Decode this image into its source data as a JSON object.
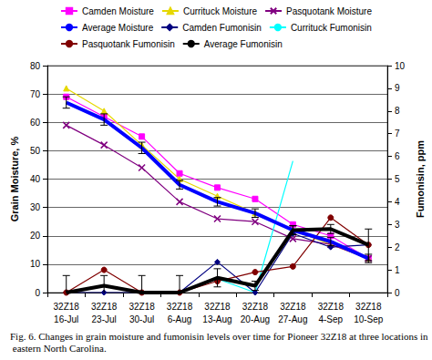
{
  "chart_data": {
    "type": "line",
    "caption": "Fig. 6. Changes in grain moisture and fumonisin levels over time for Pioneer 32Z18 at three locations in eastern North Carolina.",
    "y_label": "Grain Moisture, %",
    "y2_label": "Fumonisin, ppm",
    "categories": [
      "32Z18\n16-Jul",
      "32Z18\n23-Jul",
      "32Z18\n30-Jul",
      "32Z18\n6-Aug",
      "32Z18\n13-Aug",
      "32Z18\n20-Aug",
      "32Z18\n27-Aug",
      "32Z18\n4-Sep",
      "32Z18\n10-Sep"
    ],
    "ylim": [
      0,
      80
    ],
    "yticks": [
      0,
      10,
      20,
      30,
      40,
      50,
      60,
      70,
      80
    ],
    "y2lim": [
      0,
      10
    ],
    "y2ticks": [
      0,
      1,
      2,
      3,
      4,
      5,
      6,
      7,
      8,
      9,
      10
    ],
    "grid": true,
    "legend": "top",
    "series": [
      {
        "name": "Camden Moisture",
        "color": "#FF00FF",
        "marker": "square",
        "values": [
          69,
          62,
          55,
          42,
          37,
          33,
          24,
          20,
          12
        ]
      },
      {
        "name": "Currituck Moisture",
        "color": "#E6D800",
        "marker": "triangle",
        "values": [
          72,
          64,
          52,
          40,
          34,
          28,
          22,
          17,
          12
        ]
      },
      {
        "name": "Pasquotank Moisture",
        "color": "#800080",
        "marker": "x",
        "values": [
          59,
          52,
          44,
          32,
          26,
          25,
          19,
          17,
          12
        ]
      },
      {
        "name": "Average Moisture",
        "color": "#0000FF",
        "marker": "none",
        "line_style": "thick",
        "values": [
          67,
          61,
          51,
          38,
          32,
          28,
          22,
          18,
          12
        ],
        "errors": [
          2,
          2,
          2,
          1.5,
          1.5,
          1.5,
          1.5,
          1.5,
          1.5
        ]
      },
      {
        "name": "Camden Fumonisin",
        "color": "#000080",
        "marker": "diamond",
        "axis": "y2",
        "values": [
          0,
          0,
          0,
          0,
          1.35,
          0,
          2.6,
          2.0,
          2.1
        ]
      },
      {
        "name": "Currituck Fumonisin",
        "color": "#00FFFF",
        "marker": "none",
        "axis": "y2",
        "values": [
          0,
          0.3,
          0,
          0,
          0.6,
          0,
          5.8,
          null,
          null
        ]
      },
      {
        "name": "Pasquotank Fumonisin",
        "color": "#800000",
        "marker": "circle",
        "axis": "y2",
        "values": [
          0,
          1.0,
          0,
          0,
          0.5,
          0.9,
          1.15,
          3.3,
          2.1
        ]
      },
      {
        "name": "Average Fumonisin",
        "color": "#000000",
        "marker": "none",
        "line_style": "thick",
        "axis": "y2",
        "values": [
          0,
          0.3,
          0,
          0,
          0.65,
          0.3,
          2.75,
          2.8,
          2.1
        ],
        "errors": [
          0.75,
          0.45,
          0.75,
          0.75,
          0.4,
          0.2,
          0.2,
          0.2,
          0.7
        ]
      }
    ]
  }
}
